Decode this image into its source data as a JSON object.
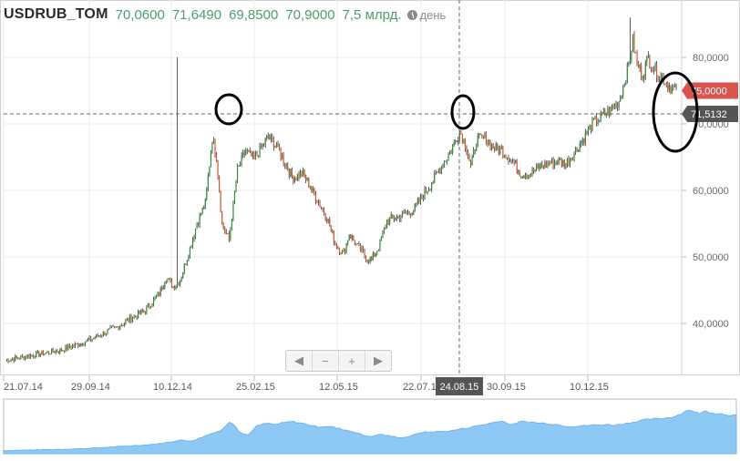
{
  "header": {
    "symbol": "USDRUB_TOM",
    "open": "70,0600",
    "high": "71,6490",
    "low": "69,8500",
    "close": "70,9000",
    "volume": "7,5 млрд.",
    "period": "день",
    "period_icon": "clock-icon"
  },
  "zoom_controls": {
    "left": "◀",
    "minus": "−",
    "plus": "+",
    "right": "▶"
  },
  "colors": {
    "up_candle": "#2e8b3c",
    "down_candle": "#d9542c",
    "last_price_badge": "#d9534f",
    "crosshair_badge": "#555555",
    "navigator_fill": "#8ec8f5",
    "navigator_line": "#6fb4ee",
    "annotation": "#000000"
  },
  "chart_data": {
    "type": "candlestick",
    "x_tick_labels": [
      "21.07.14",
      "29.09.14",
      "10.12.14",
      "25.02.15",
      "12.05.15",
      "22.07.15",
      "30.09.15",
      "10.12.15"
    ],
    "y_tick_labels": [
      "40,0000",
      "50,0000",
      "60,0000",
      "70,0000",
      "80,0000"
    ],
    "ylim": [
      33.0,
      88.0
    ],
    "last_price_label": "75,0000",
    "crosshair_price_label": "71,5132",
    "crosshair_date_label": "24.08.15",
    "crosshair_date_index": 285,
    "close_series_key_points": [
      [
        0,
        34.5
      ],
      [
        40,
        36.0
      ],
      [
        60,
        37.5
      ],
      [
        80,
        39.5
      ],
      [
        100,
        42.0
      ],
      [
        110,
        44.5
      ],
      [
        115,
        47.0
      ],
      [
        120,
        45.5
      ],
      [
        125,
        46.5
      ],
      [
        133,
        52.0
      ],
      [
        137,
        55.0
      ],
      [
        143,
        58.0
      ],
      [
        148,
        68.0
      ],
      [
        151,
        65.0
      ],
      [
        155,
        55.0
      ],
      [
        160,
        52.5
      ],
      [
        166,
        63.0
      ],
      [
        172,
        66.0
      ],
      [
        178,
        64.5
      ],
      [
        183,
        66.5
      ],
      [
        188,
        68.0
      ],
      [
        193,
        67.0
      ],
      [
        198,
        65.0
      ],
      [
        205,
        62.0
      ],
      [
        213,
        62.5
      ],
      [
        222,
        59.0
      ],
      [
        230,
        56.0
      ],
      [
        236,
        52.0
      ],
      [
        242,
        50.5
      ],
      [
        246,
        53.5
      ],
      [
        252,
        51.5
      ],
      [
        258,
        50.0
      ],
      [
        262,
        49.5
      ],
      [
        268,
        52.0
      ],
      [
        273,
        55.5
      ],
      [
        280,
        56.0
      ],
      [
        286,
        56.5
      ],
      [
        292,
        57.0
      ],
      [
        298,
        59.0
      ],
      [
        306,
        61.5
      ],
      [
        313,
        64.0
      ],
      [
        320,
        66.5
      ],
      [
        325,
        69.0
      ],
      [
        330,
        66.5
      ],
      [
        333,
        63.5
      ],
      [
        337,
        67.5
      ],
      [
        343,
        68.0
      ],
      [
        349,
        66.5
      ],
      [
        355,
        66.0
      ],
      [
        363,
        64.5
      ],
      [
        369,
        62.5
      ],
      [
        375,
        62.5
      ],
      [
        382,
        63.5
      ],
      [
        388,
        64.0
      ],
      [
        395,
        64.5
      ],
      [
        401,
        64.0
      ],
      [
        408,
        66.0
      ],
      [
        414,
        68.0
      ],
      [
        420,
        70.0
      ],
      [
        426,
        71.0
      ],
      [
        433,
        72.0
      ],
      [
        439,
        73.5
      ],
      [
        445,
        78.0
      ],
      [
        449,
        82.5
      ],
      [
        452,
        79.0
      ],
      [
        456,
        77.5
      ],
      [
        460,
        80.0
      ],
      [
        465,
        78.0
      ],
      [
        470,
        77.0
      ],
      [
        476,
        75.5
      ],
      [
        480,
        75.0
      ]
    ],
    "spikes": [
      {
        "index": 123,
        "high": 80.0
      },
      {
        "index": 447,
        "high": 86.0
      }
    ],
    "annotations": [
      "circle-around-peak-1",
      "circle-around-peak-2",
      "ellipse-around-last-price"
    ]
  },
  "navigator": {
    "present": true
  }
}
